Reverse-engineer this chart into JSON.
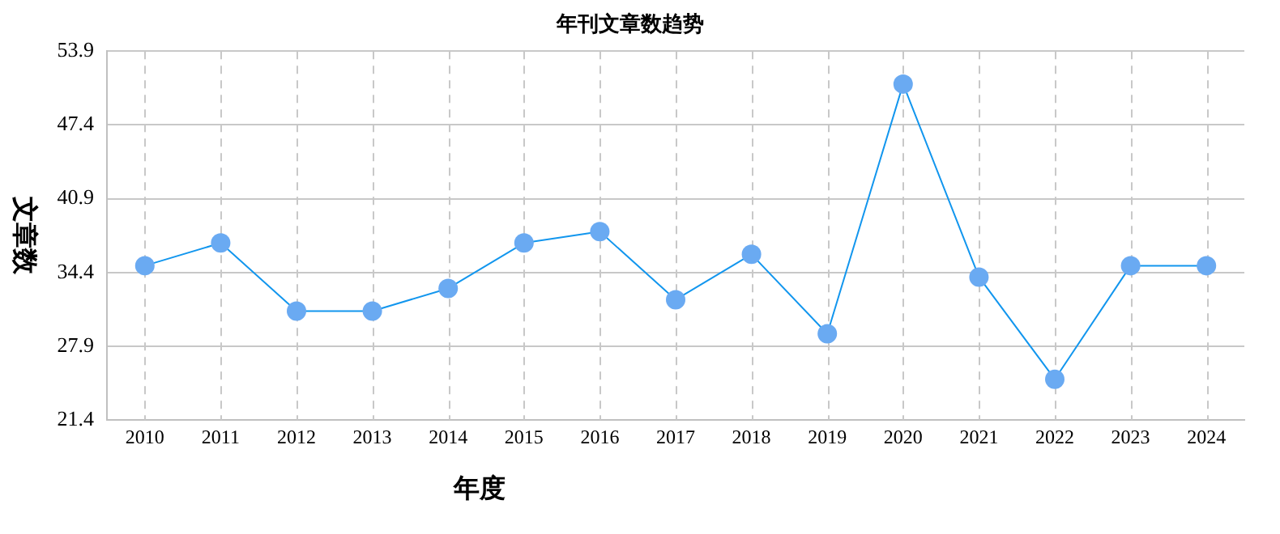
{
  "chart_data": {
    "type": "line",
    "title": "年刊文章数趋势",
    "xlabel": "年度",
    "ylabel": "文章数",
    "categories": [
      "2010",
      "2011",
      "2012",
      "2013",
      "2014",
      "2015",
      "2016",
      "2017",
      "2018",
      "2019",
      "2020",
      "2021",
      "2022",
      "2023",
      "2024"
    ],
    "series": [
      {
        "color": "#1296ee",
        "values": [
          35,
          37,
          31,
          31,
          33,
          37,
          38,
          32,
          36,
          29,
          51,
          34,
          25,
          35,
          35
        ]
      }
    ],
    "ylim": [
      21.4,
      53.9
    ],
    "yticks": [
      21.4,
      27.9,
      34.4,
      40.9,
      47.4,
      53.9
    ],
    "grid": true,
    "legend": false,
    "marker": "circle",
    "line_style": "solid"
  }
}
